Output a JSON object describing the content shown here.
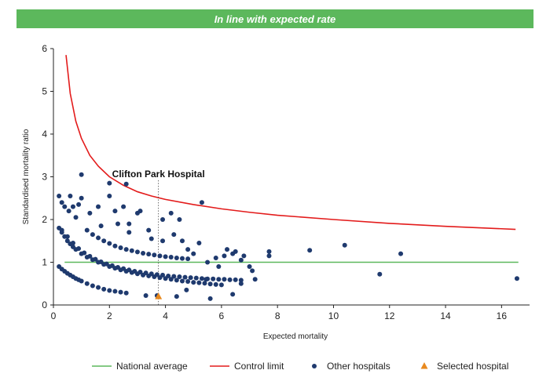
{
  "banner": {
    "text": "In line with expected rate",
    "color": "#5cb85c"
  },
  "colors": {
    "national": "#5cb85c",
    "control": "#e31b1b",
    "other": "#1f3a6e",
    "selected": "#e8891e",
    "axis": "#222222"
  },
  "chart_data": {
    "type": "scatter",
    "title": "",
    "xlabel": "Expected mortality",
    "ylabel": "Standardised mortality ratio",
    "xlim": [
      0,
      17
    ],
    "ylim": [
      0,
      6
    ],
    "xticks": [
      0,
      2,
      4,
      6,
      8,
      10,
      12,
      14,
      16
    ],
    "yticks": [
      0,
      1,
      2,
      3,
      4,
      5,
      6
    ],
    "grid": false,
    "legend_position": "bottom",
    "annotation": {
      "text": "Clifton Park Hospital",
      "x": 3.75
    },
    "national_average": {
      "name": "National average",
      "y": 1
    },
    "control_limit": {
      "name": "Control limit",
      "x": [
        0.45,
        0.6,
        0.8,
        1.0,
        1.3,
        1.6,
        2.0,
        2.5,
        3.0,
        3.5,
        4.0,
        5.0,
        6.0,
        7.0,
        8.0,
        10.0,
        12.0,
        14.0,
        16.5
      ],
      "y": [
        5.85,
        4.95,
        4.3,
        3.9,
        3.5,
        3.25,
        3.0,
        2.8,
        2.65,
        2.55,
        2.47,
        2.35,
        2.25,
        2.17,
        2.1,
        2.0,
        1.91,
        1.84,
        1.77
      ]
    },
    "other_hospitals": {
      "name": "Other hospitals",
      "x": [
        0.2,
        0.3,
        0.4,
        0.5,
        0.6,
        0.7,
        0.8,
        0.9,
        1.0,
        1.2,
        1.4,
        1.6,
        1.8,
        2.0,
        2.2,
        2.4,
        2.6,
        0.2,
        0.3,
        0.4,
        0.5,
        0.6,
        0.7,
        0.8,
        1.0,
        1.2,
        1.4,
        1.6,
        1.8,
        2.0,
        2.2,
        2.4,
        2.6,
        2.8,
        3.0,
        3.2,
        3.4,
        3.6,
        3.8,
        4.0,
        4.2,
        4.4,
        4.6,
        4.8,
        5.0,
        5.2,
        5.4,
        5.6,
        5.8,
        6.0,
        0.3,
        0.5,
        0.7,
        0.9,
        1.1,
        1.3,
        1.5,
        1.7,
        1.9,
        2.1,
        2.3,
        2.5,
        2.7,
        2.9,
        3.1,
        3.3,
        3.5,
        3.7,
        3.9,
        4.1,
        4.3,
        4.5,
        4.7,
        4.9,
        5.1,
        5.3,
        5.5,
        5.7,
        5.9,
        6.1,
        6.3,
        6.5,
        6.7,
        1.2,
        1.4,
        1.6,
        1.8,
        2.0,
        2.2,
        2.4,
        2.6,
        2.8,
        3.0,
        3.2,
        3.4,
        3.6,
        3.8,
        4.0,
        4.2,
        4.4,
        4.6,
        4.8,
        0.2,
        0.3,
        0.4,
        0.6,
        0.7,
        0.9,
        1.0,
        1.3,
        1.6,
        2.0,
        2.2,
        2.5,
        2.7,
        3.0,
        3.1,
        3.5,
        3.9,
        4.2,
        4.5,
        5.3,
        2.0,
        2.6,
        1.0,
        0.55,
        0.8,
        1.7,
        2.3,
        2.7,
        3.4,
        3.9,
        4.3,
        4.6,
        4.8,
        5.0,
        5.2,
        5.5,
        5.8,
        6.2,
        6.4,
        6.8,
        7.0,
        7.1,
        7.2,
        5.9,
        6.1,
        6.5,
        6.7,
        7.7,
        7.7,
        9.15,
        10.4,
        11.65,
        12.4,
        16.55,
        3.3,
        3.7,
        4.4,
        4.75,
        5.45,
        5.6,
        6.4,
        6.7
      ],
      "y": [
        0.9,
        0.84,
        0.79,
        0.74,
        0.7,
        0.66,
        0.62,
        0.59,
        0.56,
        0.5,
        0.45,
        0.41,
        0.37,
        0.34,
        0.32,
        0.3,
        0.28,
        1.8,
        1.7,
        1.6,
        1.5,
        1.43,
        1.36,
        1.3,
        1.2,
        1.12,
        1.06,
        1.0,
        0.95,
        0.9,
        0.86,
        0.82,
        0.79,
        0.76,
        0.73,
        0.7,
        0.68,
        0.66,
        0.64,
        0.62,
        0.6,
        0.58,
        0.56,
        0.55,
        0.53,
        0.52,
        0.51,
        0.49,
        0.48,
        0.47,
        1.75,
        1.6,
        1.45,
        1.32,
        1.22,
        1.14,
        1.07,
        1.01,
        0.96,
        0.92,
        0.88,
        0.85,
        0.82,
        0.79,
        0.77,
        0.75,
        0.73,
        0.71,
        0.7,
        0.68,
        0.67,
        0.66,
        0.65,
        0.64,
        0.63,
        0.62,
        0.61,
        0.61,
        0.6,
        0.6,
        0.59,
        0.59,
        0.58,
        1.75,
        1.65,
        1.57,
        1.5,
        1.44,
        1.38,
        1.34,
        1.3,
        1.27,
        1.24,
        1.21,
        1.19,
        1.17,
        1.15,
        1.13,
        1.12,
        1.1,
        1.09,
        1.08,
        2.55,
        2.4,
        2.3,
        2.55,
        2.3,
        2.35,
        2.5,
        2.15,
        2.3,
        2.55,
        2.2,
        2.3,
        1.9,
        2.15,
        2.2,
        1.55,
        2.0,
        2.15,
        2.0,
        2.4,
        2.85,
        2.83,
        3.05,
        2.2,
        2.05,
        1.85,
        1.9,
        1.7,
        1.75,
        1.5,
        1.65,
        1.5,
        1.3,
        1.2,
        1.45,
        1.0,
        1.1,
        1.3,
        1.2,
        1.15,
        0.9,
        0.8,
        0.6,
        0.9,
        1.15,
        1.25,
        1.05,
        1.25,
        1.15,
        1.28,
        1.4,
        0.72,
        1.2,
        0.62,
        0.22,
        0.22,
        0.2,
        0.35,
        0.6,
        0.15,
        0.25,
        0.5
      ]
    },
    "selected_hospital": {
      "name": "Selected hospital",
      "x": 3.75,
      "y": 0.2
    }
  }
}
